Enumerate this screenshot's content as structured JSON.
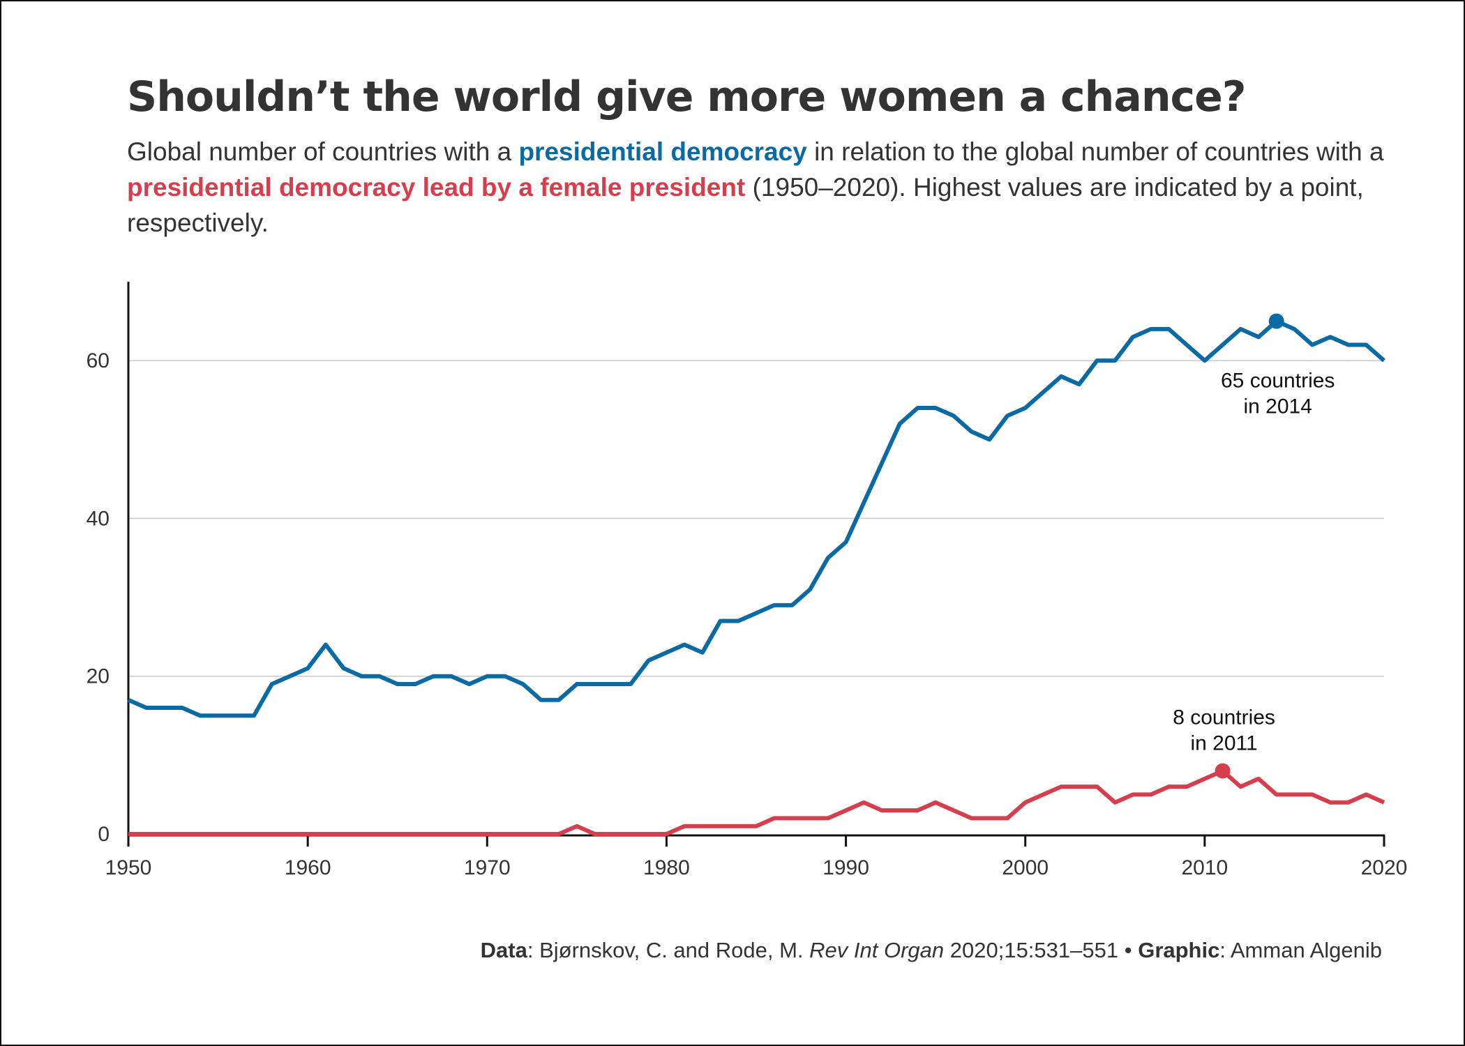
{
  "header": {
    "title": "Shouldn’t the world give more women a chance?",
    "subtitle": {
      "part1": "Global number of countries with a ",
      "highlight_blue": "presidential democracy",
      "part2": " in relation to the global number of countries with a ",
      "highlight_red": "presidential democracy lead by a female president",
      "part3": " (1950–2020). Highest values are indicated by a point, respectively."
    }
  },
  "colors": {
    "blue": "#0a6aa4",
    "red": "#d63e4e",
    "text": "#333333",
    "grid": "#c8c8c8",
    "axis": "#111111"
  },
  "chart_data": {
    "type": "line",
    "title": "",
    "xlabel": "",
    "ylabel": "",
    "xlim": [
      1950,
      2020
    ],
    "ylim": [
      0,
      70
    ],
    "grid": "horizontal",
    "x_ticks": [
      1950,
      1960,
      1970,
      1980,
      1990,
      2000,
      2010,
      2020
    ],
    "y_ticks": [
      0,
      20,
      40,
      60
    ],
    "x": [
      1950,
      1951,
      1952,
      1953,
      1954,
      1955,
      1956,
      1957,
      1958,
      1959,
      1960,
      1961,
      1962,
      1963,
      1964,
      1965,
      1966,
      1967,
      1968,
      1969,
      1970,
      1971,
      1972,
      1973,
      1974,
      1975,
      1976,
      1977,
      1978,
      1979,
      1980,
      1981,
      1982,
      1983,
      1984,
      1985,
      1986,
      1987,
      1988,
      1989,
      1990,
      1991,
      1992,
      1993,
      1994,
      1995,
      1996,
      1997,
      1998,
      1999,
      2000,
      2001,
      2002,
      2003,
      2004,
      2005,
      2006,
      2007,
      2008,
      2009,
      2010,
      2011,
      2012,
      2013,
      2014,
      2015,
      2016,
      2017,
      2018,
      2019,
      2020
    ],
    "series": [
      {
        "name": "presidential democracy",
        "color": "#0a6aa4",
        "values": [
          17,
          16,
          16,
          16,
          15,
          15,
          15,
          15,
          19,
          20,
          21,
          24,
          21,
          20,
          20,
          19,
          19,
          20,
          20,
          19,
          20,
          20,
          19,
          17,
          17,
          19,
          19,
          19,
          19,
          22,
          23,
          24,
          23,
          27,
          27,
          28,
          29,
          29,
          31,
          35,
          37,
          42,
          47,
          52,
          54,
          54,
          53,
          51,
          50,
          53,
          54,
          56,
          58,
          57,
          60,
          60,
          63,
          64,
          64,
          62,
          60,
          62,
          64,
          63,
          65,
          64,
          62,
          63,
          62,
          62,
          60
        ],
        "highlight": {
          "x": 2014,
          "y": 65,
          "label_line1": "65 countries",
          "label_line2": "in 2014"
        }
      },
      {
        "name": "presidential democracy lead by a female president",
        "color": "#d63e4e",
        "values": [
          0,
          0,
          0,
          0,
          0,
          0,
          0,
          0,
          0,
          0,
          0,
          0,
          0,
          0,
          0,
          0,
          0,
          0,
          0,
          0,
          0,
          0,
          0,
          0,
          0,
          1,
          0,
          0,
          0,
          0,
          0,
          1,
          1,
          1,
          1,
          1,
          2,
          2,
          2,
          2,
          3,
          4,
          3,
          3,
          3,
          4,
          3,
          2,
          2,
          2,
          4,
          5,
          6,
          6,
          6,
          4,
          5,
          5,
          6,
          6,
          7,
          8,
          6,
          7,
          5,
          5,
          5,
          4,
          4,
          5,
          4
        ],
        "highlight": {
          "x": 2011,
          "y": 8,
          "label_line1": "8 countries",
          "label_line2": "in 2011"
        }
      }
    ]
  },
  "caption": {
    "data_label": "Data",
    "data_text": ": Bjørnskov, C. and Rode, M. ",
    "journal": "Rev Int Organ",
    "citation": " 2020;15:531–551",
    "separator": " • ",
    "graphic_label": "Graphic",
    "graphic_text": ": Amman Algenib"
  }
}
